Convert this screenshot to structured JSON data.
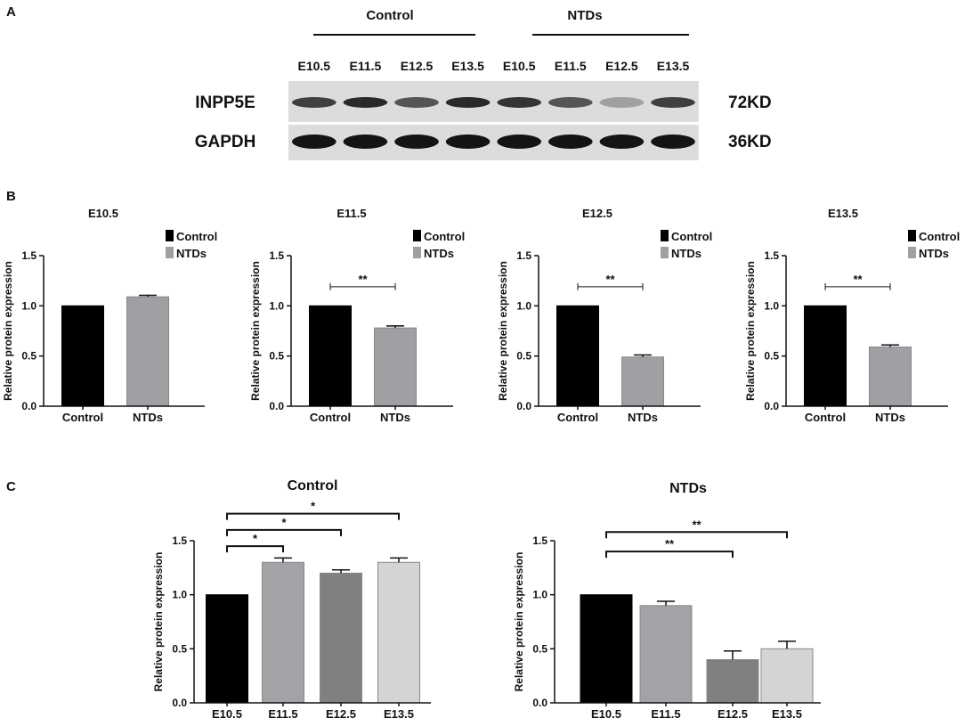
{
  "panels": {
    "a": "A",
    "b": "B",
    "c": "C"
  },
  "blot": {
    "groups": [
      "Control",
      "NTDs"
    ],
    "lanes": [
      "E10.5",
      "E11.5",
      "E12.5",
      "E13.5",
      "E10.5",
      "E11.5",
      "E12.5",
      "E13.5"
    ],
    "proteins": [
      {
        "name": "INPP5E",
        "size": "72KD",
        "intensity": [
          0.8,
          0.9,
          0.7,
          0.9,
          0.85,
          0.7,
          0.35,
          0.8
        ]
      },
      {
        "name": "GAPDH",
        "size": "36KD",
        "intensity": [
          1,
          1,
          1,
          1,
          1,
          1,
          1,
          1
        ]
      }
    ]
  },
  "chart_data": [
    {
      "type": "bar",
      "title": "E10.5",
      "categories": [
        "Control",
        "NTDs"
      ],
      "values": [
        1.0,
        1.09
      ],
      "errors": [
        0,
        0.015
      ],
      "colors": [
        "#000000",
        "#a0a0a4"
      ],
      "ylabel": "Relative protein expression",
      "xlabel": "",
      "ylim": [
        0,
        1.5
      ],
      "yticks": [
        "0.0",
        "0.5",
        "1.0",
        "1.5"
      ],
      "legend": [
        "Control",
        "NTDs"
      ],
      "legend_position": "top-right",
      "significance": []
    },
    {
      "type": "bar",
      "title": "E11.5",
      "categories": [
        "Control",
        "NTDs"
      ],
      "values": [
        1.0,
        0.78
      ],
      "errors": [
        0,
        0.02
      ],
      "colors": [
        "#000000",
        "#a0a0a4"
      ],
      "ylabel": "Relative protein expression",
      "xlabel": "",
      "ylim": [
        0,
        1.5
      ],
      "yticks": [
        "0.0",
        "0.5",
        "1.0",
        "1.5"
      ],
      "legend": [
        "Control",
        "NTDs"
      ],
      "legend_position": "top-right",
      "significance": [
        {
          "from": 0,
          "to": 1,
          "label": "**",
          "y": 1.19
        }
      ]
    },
    {
      "type": "bar",
      "title": "E12.5",
      "categories": [
        "Control",
        "NTDs"
      ],
      "values": [
        1.0,
        0.49
      ],
      "errors": [
        0,
        0.02
      ],
      "colors": [
        "#000000",
        "#a0a0a4"
      ],
      "ylabel": "Relative protein expression",
      "xlabel": "",
      "ylim": [
        0,
        1.5
      ],
      "yticks": [
        "0.0",
        "0.5",
        "1.0",
        "1.5"
      ],
      "legend": [
        "Control",
        "NTDs"
      ],
      "legend_position": "top-right",
      "significance": [
        {
          "from": 0,
          "to": 1,
          "label": "**",
          "y": 1.19
        }
      ]
    },
    {
      "type": "bar",
      "title": "E13.5",
      "categories": [
        "Control",
        "NTDs"
      ],
      "values": [
        1.0,
        0.59
      ],
      "errors": [
        0,
        0.02
      ],
      "colors": [
        "#000000",
        "#a0a0a4"
      ],
      "ylabel": "Relative protein expression",
      "xlabel": "",
      "ylim": [
        0,
        1.5
      ],
      "yticks": [
        "0.0",
        "0.5",
        "1.0",
        "1.5"
      ],
      "legend": [
        "Control",
        "NTDs"
      ],
      "legend_position": "top-right",
      "significance": [
        {
          "from": 0,
          "to": 1,
          "label": "**",
          "y": 1.19
        }
      ]
    },
    {
      "type": "bar",
      "title": "Control",
      "categories": [
        "E10.5",
        "E11.5",
        "E12.5",
        "E13.5"
      ],
      "values": [
        1.0,
        1.3,
        1.2,
        1.3
      ],
      "errors": [
        0,
        0.04,
        0.03,
        0.04
      ],
      "colors": [
        "#000000",
        "#a3a3a7",
        "#808080",
        "#d4d4d4"
      ],
      "ylabel": "Relative protein expression",
      "xlabel": "",
      "ylim": [
        0,
        1.5
      ],
      "yticks": [
        "0.0",
        "0.5",
        "1.0",
        "1.5"
      ],
      "legend": [],
      "legend_position": "",
      "significance": [
        {
          "from": 0,
          "to": 1,
          "label": "*",
          "y": 1.45
        },
        {
          "from": 0,
          "to": 2,
          "label": "*",
          "y": 1.6
        },
        {
          "from": 0,
          "to": 3,
          "label": "*",
          "y": 1.75
        }
      ]
    },
    {
      "type": "bar",
      "title": "NTDs",
      "categories": [
        "E10.5",
        "E11.5",
        "E12.5",
        "E13.5"
      ],
      "values": [
        1.0,
        0.9,
        0.4,
        0.5
      ],
      "errors": [
        0,
        0.04,
        0.08,
        0.07
      ],
      "colors": [
        "#000000",
        "#a3a3a7",
        "#808080",
        "#d4d4d4"
      ],
      "ylabel": "Relative protein expression",
      "xlabel": "",
      "ylim": [
        0,
        1.5
      ],
      "yticks": [
        "0.0",
        "0.5",
        "1.0",
        "1.5"
      ],
      "legend": [],
      "legend_position": "",
      "significance": [
        {
          "from": 0,
          "to": 2,
          "label": "**",
          "y": 1.4
        },
        {
          "from": 0,
          "to": 3,
          "label": "**",
          "y": 1.58
        }
      ]
    }
  ]
}
